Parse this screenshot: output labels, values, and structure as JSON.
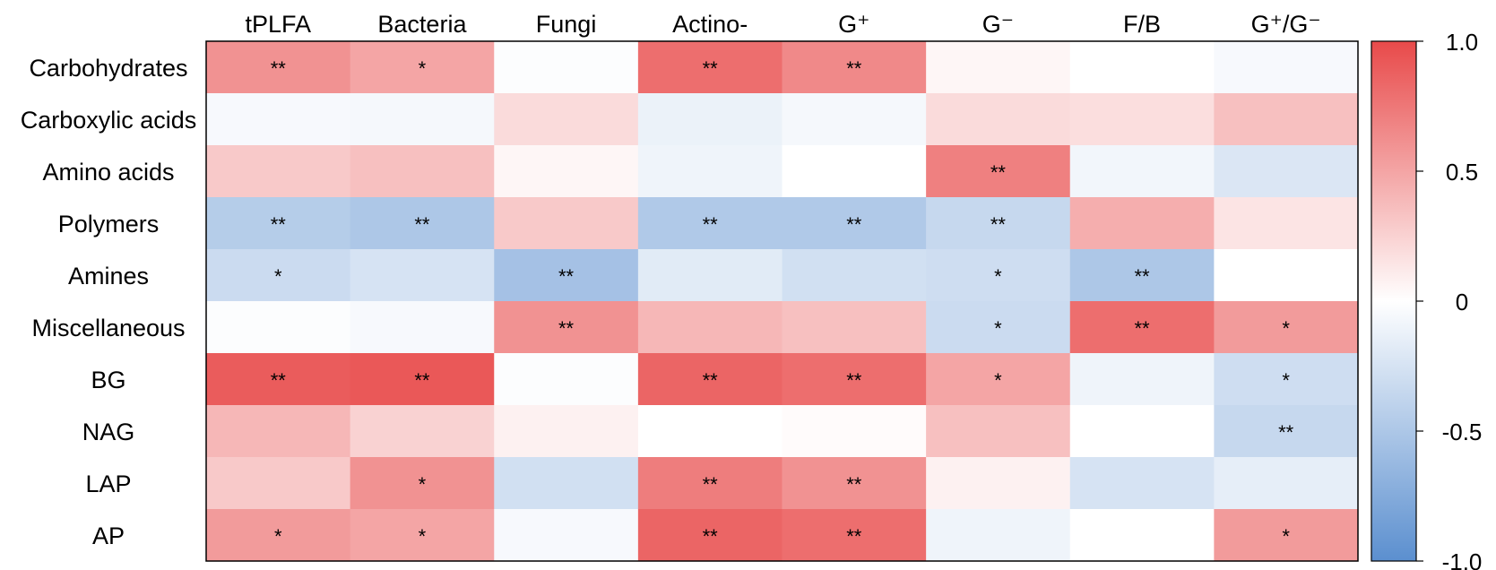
{
  "chart_data": {
    "type": "heatmap",
    "columns": [
      "tPLFA",
      "Bacteria",
      "Fungi",
      "Actino-",
      "G⁺",
      "G⁻",
      "F/B",
      "G⁺/G⁻"
    ],
    "rows": [
      "Carbohydrates",
      "Carboxylic acids",
      "Amino acids",
      "Polymers",
      "Amines",
      "Miscellaneous",
      "BG",
      "NAG",
      "LAP",
      "AP"
    ],
    "values": [
      [
        0.6,
        0.5,
        -0.02,
        0.8,
        0.65,
        0.05,
        0.0,
        -0.05
      ],
      [
        -0.05,
        -0.06,
        0.2,
        -0.12,
        -0.06,
        0.2,
        0.18,
        0.35
      ],
      [
        0.3,
        0.35,
        0.05,
        -0.1,
        0.0,
        0.7,
        -0.08,
        -0.22
      ],
      [
        -0.45,
        -0.5,
        0.3,
        -0.48,
        -0.48,
        -0.35,
        0.45,
        0.15
      ],
      [
        -0.32,
        -0.25,
        -0.55,
        -0.18,
        -0.28,
        -0.3,
        -0.5,
        0.0
      ],
      [
        -0.02,
        -0.05,
        0.6,
        0.4,
        0.35,
        -0.32,
        0.8,
        0.55
      ],
      [
        0.9,
        0.92,
        -0.02,
        0.85,
        0.8,
        0.5,
        -0.1,
        -0.3
      ],
      [
        0.4,
        0.25,
        0.08,
        0.0,
        0.02,
        0.35,
        0.0,
        -0.35
      ],
      [
        0.3,
        0.6,
        -0.28,
        0.72,
        0.6,
        0.08,
        -0.25,
        -0.15
      ],
      [
        0.55,
        0.5,
        -0.05,
        0.85,
        0.8,
        -0.1,
        0.0,
        0.55
      ]
    ],
    "significance": [
      [
        "**",
        "*",
        "",
        "**",
        "**",
        "",
        "",
        ""
      ],
      [
        "",
        "",
        "",
        "",
        "",
        "",
        "",
        ""
      ],
      [
        "",
        "",
        "",
        "",
        "",
        "**",
        "",
        ""
      ],
      [
        "**",
        "**",
        "",
        "**",
        "**",
        "**",
        "",
        ""
      ],
      [
        "*",
        "",
        "**",
        "",
        "",
        "*",
        "**",
        ""
      ],
      [
        "",
        "",
        "**",
        "",
        "",
        "*",
        "**",
        "*"
      ],
      [
        "**",
        "**",
        "",
        "**",
        "**",
        "*",
        "",
        "*"
      ],
      [
        "",
        "",
        "",
        "",
        "",
        "",
        "",
        "**"
      ],
      [
        "",
        "*",
        "",
        "**",
        "**",
        "",
        "",
        ""
      ],
      [
        "*",
        "*",
        "",
        "**",
        "**",
        "",
        "",
        "*"
      ]
    ],
    "colorbar": {
      "min": -1.0,
      "max": 1.0,
      "ticks": [
        "1.0",
        "0.5",
        "0",
        "-0.5",
        "-1.0"
      ],
      "tick_values": [
        1.0,
        0.5,
        0,
        -0.5,
        -1.0
      ],
      "colors": {
        "negative": "#5b8fcf",
        "zero": "#ffffff",
        "positive": "#e84a4a"
      }
    }
  }
}
